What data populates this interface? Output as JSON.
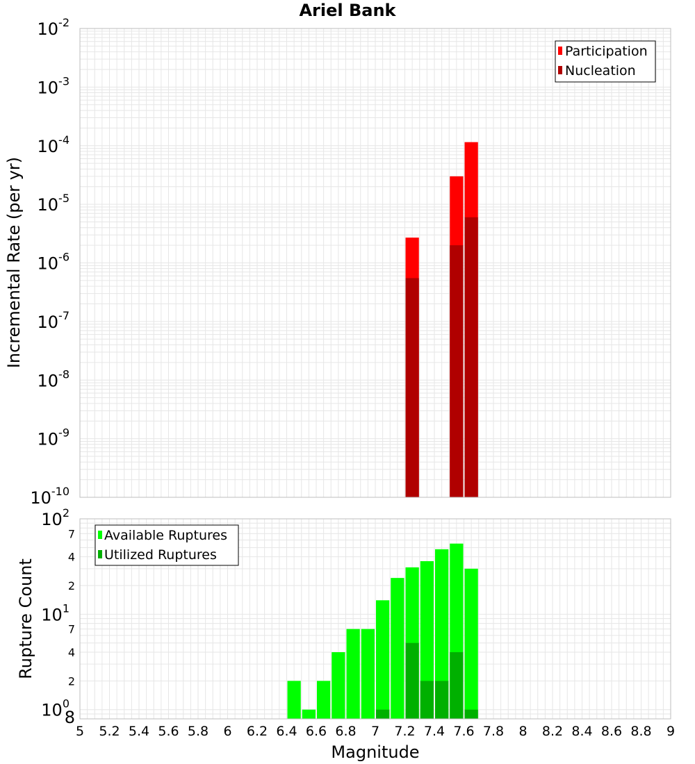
{
  "title": "Ariel Bank",
  "colors": {
    "participation": "#ff0000",
    "nucleation": "#b00000",
    "available": "#00ff00",
    "utilized": "#00b000",
    "grid": "#e6e6e6",
    "frame": "#bdbdbd"
  },
  "chart_data": [
    {
      "type": "bar",
      "title": "Ariel Bank",
      "xlabel": "Magnitude",
      "ylabel": "Incremental Rate (per yr)",
      "yscale": "log",
      "xlim": [
        5,
        9
      ],
      "ylim": [
        1e-10,
        0.01
      ],
      "grid": true,
      "legend_position": "top-right",
      "bin_width": 0.1,
      "x_ticks": [
        "5",
        "5.2",
        "5.4",
        "5.6",
        "5.8",
        "6",
        "6.2",
        "6.4",
        "6.6",
        "6.8",
        "7",
        "7.2",
        "7.4",
        "7.6",
        "7.8",
        "8",
        "8.2",
        "8.4",
        "8.6",
        "8.8",
        "9"
      ],
      "y_tick_exponents": [
        "-10",
        "-9",
        "-8",
        "-7",
        "-6",
        "-5",
        "-4",
        "-3",
        "-2"
      ],
      "x": [
        7.25,
        7.55,
        7.65
      ],
      "series": [
        {
          "name": "Participation",
          "values": [
            2.7e-06,
            3e-05,
            0.000115
          ]
        },
        {
          "name": "Nucleation",
          "values": [
            5.5e-07,
            2e-06,
            6e-06
          ]
        }
      ]
    },
    {
      "type": "bar",
      "xlabel": "Magnitude",
      "ylabel": "Rupture Count",
      "yscale": "log",
      "xlim": [
        5,
        9
      ],
      "ylim": [
        0.8,
        100
      ],
      "grid": true,
      "legend_position": "top-left",
      "bin_width": 0.1,
      "y_tick_exponents": [
        "0",
        "1",
        "2"
      ],
      "y_minor_labels": [
        "8",
        "2",
        "4",
        "7",
        "2",
        "4",
        "7"
      ],
      "x": [
        6.45,
        6.55,
        6.65,
        6.75,
        6.85,
        6.95,
        7.05,
        7.15,
        7.25,
        7.35,
        7.45,
        7.55,
        7.65
      ],
      "series": [
        {
          "name": "Available Ruptures",
          "values": [
            2,
            1,
            2,
            4,
            7,
            7,
            14,
            24,
            31,
            36,
            48,
            55,
            30
          ]
        },
        {
          "name": "Utilized Ruptures",
          "values": [
            0,
            0,
            0,
            0,
            0,
            0,
            1,
            0,
            5,
            2,
            2,
            4,
            1
          ]
        }
      ]
    }
  ]
}
